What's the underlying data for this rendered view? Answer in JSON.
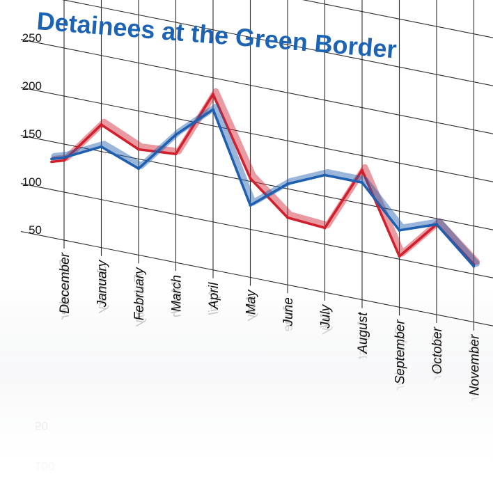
{
  "chart_data": {
    "type": "line",
    "title": "Detainees at the Green Border",
    "categories": [
      "December",
      "January",
      "February",
      "March",
      "April",
      "May",
      "June",
      "July",
      "August",
      "September",
      "October",
      "November"
    ],
    "yticks": [
      50,
      100,
      150,
      200,
      250
    ],
    "ylim": [
      50,
      250
    ],
    "grid": true,
    "reflection": true,
    "series": [
      {
        "color": "#d0202e",
        "values": [
          133,
          178,
          160,
          163,
          233,
          153,
          120,
          117,
          185,
          103,
          144,
          110
        ]
      },
      {
        "color": "#1f5fb0",
        "values": [
          136,
          155,
          140,
          183,
          217,
          125,
          155,
          172,
          172,
          130,
          144,
          108
        ]
      }
    ]
  }
}
